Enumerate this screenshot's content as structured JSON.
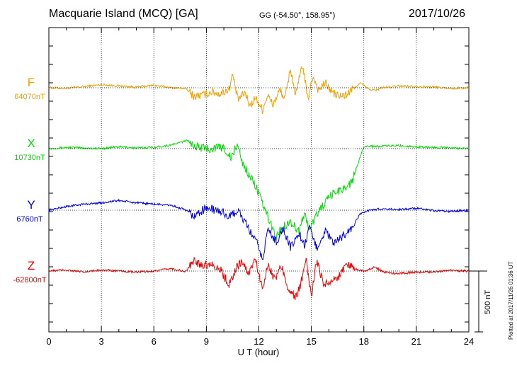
{
  "header": {
    "station": "Macquarie Island (MCQ)  [GA]",
    "coords": "GG (-54.50°, 158.95°)",
    "date": "2017/10/26"
  },
  "side_note": "Plotted at 2017/11/26 01:36 UT",
  "chart_data": {
    "type": "line",
    "title": "Macquarie Island (MCQ)  [GA]",
    "xlabel": "U T (hour)",
    "xlim": [
      0,
      24
    ],
    "xticks": [
      0,
      3,
      6,
      9,
      12,
      15,
      18,
      21,
      24
    ],
    "grid": true,
    "scale_bar": {
      "label": "500 nT",
      "value": 500
    },
    "series": [
      {
        "name": "F",
        "baseline": "64070nT",
        "color": "#f0a000",
        "points": [
          [
            0,
            0
          ],
          [
            1,
            -5
          ],
          [
            2,
            10
          ],
          [
            3,
            25
          ],
          [
            4,
            15
          ],
          [
            5,
            5
          ],
          [
            6,
            20
          ],
          [
            7,
            0
          ],
          [
            7.8,
            -5
          ],
          [
            8.3,
            -70
          ],
          [
            8.8,
            -60
          ],
          [
            9.3,
            -35
          ],
          [
            9.8,
            -50
          ],
          [
            10.3,
            -10
          ],
          [
            10.5,
            110
          ],
          [
            10.8,
            -100
          ],
          [
            11.2,
            -40
          ],
          [
            11.5,
            -150
          ],
          [
            11.8,
            -80
          ],
          [
            12.2,
            -180
          ],
          [
            12.5,
            -60
          ],
          [
            12.8,
            -140
          ],
          [
            13.2,
            -20
          ],
          [
            13.5,
            -90
          ],
          [
            13.8,
            160
          ],
          [
            14.1,
            -60
          ],
          [
            14.5,
            190
          ],
          [
            14.8,
            -100
          ],
          [
            15.1,
            100
          ],
          [
            15.4,
            -20
          ],
          [
            15.8,
            40
          ],
          [
            16.2,
            -40
          ],
          [
            16.6,
            -70
          ],
          [
            17,
            -60
          ],
          [
            17.3,
            -20
          ],
          [
            17.8,
            40
          ],
          [
            18.3,
            -15
          ],
          [
            18.7,
            -20
          ],
          [
            19,
            0
          ],
          [
            19.5,
            5
          ],
          [
            20,
            15
          ],
          [
            21,
            10
          ],
          [
            22,
            5
          ],
          [
            23,
            -5
          ],
          [
            24,
            0
          ]
        ]
      },
      {
        "name": "X",
        "baseline": "10730nT",
        "color": "#00dd00",
        "points": [
          [
            0,
            0
          ],
          [
            1,
            10
          ],
          [
            2,
            5
          ],
          [
            3,
            0
          ],
          [
            4,
            15
          ],
          [
            5,
            5
          ],
          [
            6,
            10
          ],
          [
            7,
            30
          ],
          [
            8,
            70
          ],
          [
            8.3,
            20
          ],
          [
            9,
            0
          ],
          [
            10,
            10
          ],
          [
            10.4,
            -80
          ],
          [
            10.8,
            40
          ],
          [
            11,
            -100
          ],
          [
            11.3,
            -180
          ],
          [
            11.8,
            -300
          ],
          [
            12.2,
            -450
          ],
          [
            12.5,
            -560
          ],
          [
            13,
            -730
          ],
          [
            13.3,
            -650
          ],
          [
            13.8,
            -600
          ],
          [
            14.3,
            -680
          ],
          [
            14.6,
            -530
          ],
          [
            14.9,
            -670
          ],
          [
            15.3,
            -540
          ],
          [
            15.8,
            -440
          ],
          [
            16.3,
            -360
          ],
          [
            16.8,
            -330
          ],
          [
            17.3,
            -280
          ],
          [
            17.6,
            -150
          ],
          [
            18,
            20
          ],
          [
            19,
            20
          ],
          [
            20,
            25
          ],
          [
            21,
            15
          ],
          [
            22,
            10
          ],
          [
            23,
            5
          ],
          [
            24,
            0
          ]
        ]
      },
      {
        "name": "Y",
        "baseline": "6760nT",
        "color": "#0000ee",
        "points": [
          [
            0,
            0
          ],
          [
            1,
            30
          ],
          [
            2,
            50
          ],
          [
            3,
            60
          ],
          [
            4,
            80
          ],
          [
            5,
            60
          ],
          [
            6,
            50
          ],
          [
            7,
            40
          ],
          [
            7.8,
            0
          ],
          [
            8.3,
            -50
          ],
          [
            9,
            20
          ],
          [
            9.5,
            0
          ],
          [
            10,
            -20
          ],
          [
            10.3,
            -60
          ],
          [
            10.8,
            0
          ],
          [
            11.2,
            -100
          ],
          [
            11.6,
            -200
          ],
          [
            12,
            -300
          ],
          [
            12.2,
            -420
          ],
          [
            12.5,
            -160
          ],
          [
            13,
            -260
          ],
          [
            13.4,
            -150
          ],
          [
            13.8,
            -310
          ],
          [
            14.3,
            -190
          ],
          [
            14.6,
            -290
          ],
          [
            14.9,
            -150
          ],
          [
            15.3,
            -310
          ],
          [
            15.8,
            -170
          ],
          [
            16.3,
            -280
          ],
          [
            16.8,
            -210
          ],
          [
            17.3,
            -150
          ],
          [
            17.8,
            -30
          ],
          [
            18.3,
            0
          ],
          [
            19,
            10
          ],
          [
            20,
            5
          ],
          [
            21,
            15
          ],
          [
            22,
            -5
          ],
          [
            23,
            -10
          ],
          [
            24,
            0
          ]
        ]
      },
      {
        "name": "Z",
        "baseline": "-62800nT",
        "color": "#ee0000",
        "points": [
          [
            0,
            0
          ],
          [
            1,
            10
          ],
          [
            2,
            -10
          ],
          [
            3,
            10
          ],
          [
            4,
            0
          ],
          [
            5,
            -10
          ],
          [
            6,
            0
          ],
          [
            7,
            20
          ],
          [
            7.8,
            -5
          ],
          [
            8.3,
            80
          ],
          [
            8.8,
            50
          ],
          [
            9.3,
            60
          ],
          [
            9.8,
            10
          ],
          [
            10.3,
            -110
          ],
          [
            10.7,
            20
          ],
          [
            11,
            80
          ],
          [
            11.4,
            -20
          ],
          [
            11.8,
            100
          ],
          [
            12.2,
            -150
          ],
          [
            12.5,
            60
          ],
          [
            12.9,
            -70
          ],
          [
            13.3,
            40
          ],
          [
            13.7,
            -150
          ],
          [
            14.1,
            -220
          ],
          [
            14.4,
            -100
          ],
          [
            14.7,
            80
          ],
          [
            15,
            -200
          ],
          [
            15.3,
            80
          ],
          [
            15.7,
            -100
          ],
          [
            16.1,
            -90
          ],
          [
            16.6,
            -40
          ],
          [
            17,
            60
          ],
          [
            17.5,
            20
          ],
          [
            18,
            0
          ],
          [
            18.6,
            30
          ],
          [
            19.2,
            -10
          ],
          [
            19.8,
            -20
          ],
          [
            20.5,
            -15
          ],
          [
            21,
            -10
          ],
          [
            22,
            -5
          ],
          [
            23,
            5
          ],
          [
            24,
            0
          ]
        ]
      }
    ]
  }
}
